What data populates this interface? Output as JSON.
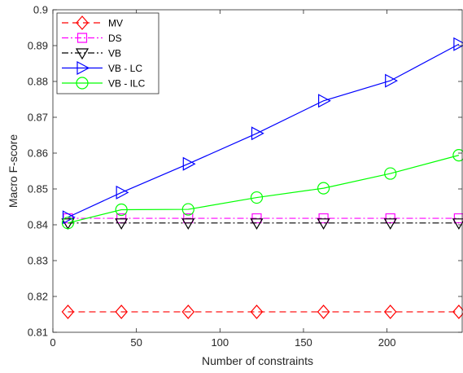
{
  "chart_data": {
    "type": "line",
    "xlabel": "Number of constraints",
    "ylabel": "Macro F-score",
    "xlim": [
      0,
      245
    ],
    "ylim": [
      0.81,
      0.9
    ],
    "xticks": [
      0,
      50,
      100,
      150,
      200
    ],
    "yticks": [
      0.81,
      0.82,
      0.83,
      0.84,
      0.85,
      0.86,
      0.87,
      0.88,
      0.89,
      0.9
    ],
    "xtick_labels": [
      "0",
      "50",
      "100",
      "150",
      "200"
    ],
    "ytick_labels": [
      "0.81",
      "0.82",
      "0.83",
      "0.84",
      "0.85",
      "0.86",
      "0.87",
      "0.88",
      "0.89",
      "0.9"
    ],
    "x": [
      9,
      41,
      81,
      122,
      162,
      202,
      243
    ],
    "grid": false,
    "legend_position": "top-left",
    "series": [
      {
        "name": "MV",
        "values": [
          0.8157,
          0.8157,
          0.8157,
          0.8157,
          0.8157,
          0.8157,
          0.8157
        ],
        "color": "#ff0000",
        "dash": "8,5",
        "marker": "diamond"
      },
      {
        "name": "DS",
        "values": [
          0.8418,
          0.8418,
          0.8418,
          0.8418,
          0.8418,
          0.8418,
          0.8418
        ],
        "color": "#ff00ff",
        "dash": "8,3,2,3",
        "marker": "square"
      },
      {
        "name": "VB",
        "values": [
          0.8405,
          0.8405,
          0.8405,
          0.8405,
          0.8405,
          0.8405,
          0.8405
        ],
        "color": "#000000",
        "dash": "8,3,2,3",
        "marker": "triangle-down"
      },
      {
        "name": "VB - LC",
        "values": [
          0.8421,
          0.849,
          0.857,
          0.8655,
          0.8746,
          0.8802,
          0.8904
        ],
        "color": "#0000ff",
        "dash": "",
        "marker": "triangle-right"
      },
      {
        "name": "VB - ILC",
        "values": [
          0.8405,
          0.8442,
          0.8443,
          0.8476,
          0.8502,
          0.8543,
          0.8594
        ],
        "color": "#00ff00",
        "dash": "",
        "marker": "circle"
      }
    ]
  }
}
